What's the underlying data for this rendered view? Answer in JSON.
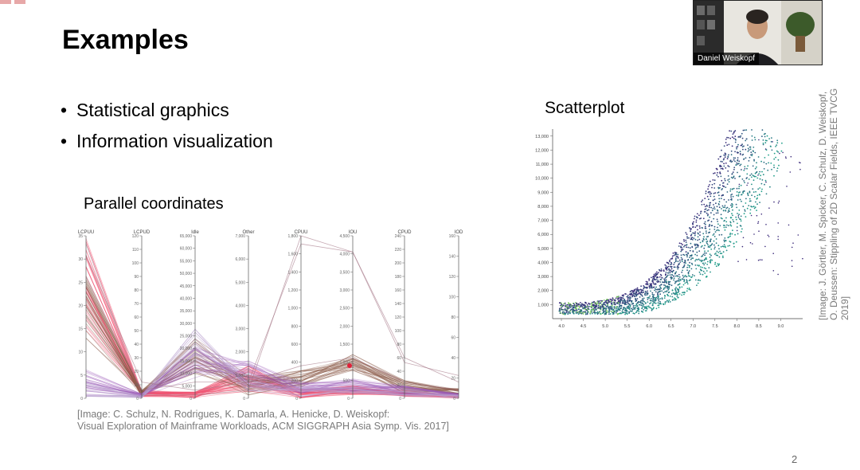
{
  "slide": {
    "title": "Examples",
    "bullets": [
      "Statistical graphics",
      "Information visualization"
    ],
    "page_number": "2"
  },
  "parallel_coords": {
    "label": "Parallel coordinates",
    "caption_lines": [
      "[Image: C. Schulz, N. Rodrigues, K. Damarla, A. Henicke, D. Weiskopf:",
      "Visual Exploration of Mainframe Workloads, ACM SIGGRAPH Asia Symp. Vis. 2017]"
    ],
    "axes": [
      {
        "name": "LCPUU",
        "ticks": [
          "35",
          "30",
          "25",
          "20",
          "15",
          "10",
          "5",
          "0"
        ]
      },
      {
        "name": "LCPUD",
        "ticks": [
          "120",
          "110",
          "100",
          "90",
          "80",
          "70",
          "60",
          "50",
          "40",
          "30",
          "20",
          "10",
          "0"
        ]
      },
      {
        "name": "Idle",
        "ticks": [
          "65,000",
          "60,000",
          "55,000",
          "50,000",
          "45,000",
          "40,000",
          "35,000",
          "30,000",
          "25,000",
          "20,000",
          "15,000",
          "10,000",
          "5,000",
          "0"
        ]
      },
      {
        "name": "Other",
        "ticks": [
          "7,000",
          "6,000",
          "5,000",
          "4,000",
          "3,000",
          "2,000",
          "1,000",
          "0"
        ]
      },
      {
        "name": "CPUU",
        "ticks": [
          "1,800",
          "1,600",
          "1,400",
          "1,200",
          "1,000",
          "800",
          "600",
          "400",
          "200",
          "0"
        ]
      },
      {
        "name": "IOU",
        "ticks": [
          "4,500",
          "4,000",
          "3,500",
          "3,000",
          "2,500",
          "2,000",
          "1,500",
          "1,000",
          "500",
          "0"
        ]
      },
      {
        "name": "CPUD",
        "ticks": [
          "240",
          "220",
          "200",
          "180",
          "160",
          "140",
          "120",
          "100",
          "80",
          "60",
          "40",
          "20",
          "0"
        ]
      },
      {
        "name": "IOD",
        "ticks": [
          "160",
          "140",
          "120",
          "100",
          "80",
          "60",
          "40",
          "20",
          "0"
        ]
      }
    ]
  },
  "scatterplot": {
    "label": "Scatterplot",
    "caption": "[Image: J. Görtler, M. Spicker, C. Schulz, D. Weiskopf, O. Deussen: Stippling of 2D Scalar Fields, IEEE TVCG 2019]",
    "y_ticks": [
      "13,000",
      "12,000",
      "11,000",
      "10,000",
      "9,000",
      "8,000",
      "7,000",
      "6,000",
      "5,000",
      "4,000",
      "3,000",
      "2,000",
      "1,000"
    ],
    "x_ticks": [
      "4.0",
      "4.5",
      "5.0",
      "5.5",
      "6.0",
      "6.5",
      "7.0",
      "7.5",
      "8.0",
      "8.5",
      "9.0"
    ]
  },
  "video": {
    "participant_name": "Daniel Weiskopf"
  },
  "colors": {
    "pc_red": "#f0506e",
    "pc_brown": "#8b5a4a",
    "pc_purple": "#9b59b6",
    "scatter_teal": "#21a08a",
    "scatter_purple": "#3b2a7a"
  },
  "chart_data": [
    {
      "type": "line",
      "title": "",
      "axes": [
        "LCPUU",
        "LCPUD",
        "Idle",
        "Other",
        "CPUU",
        "IOU",
        "CPUD",
        "IOD"
      ],
      "ranges": [
        [
          0,
          35
        ],
        [
          0,
          120
        ],
        [
          0,
          65000
        ],
        [
          0,
          7000
        ],
        [
          0,
          1800
        ],
        [
          0,
          4500
        ],
        [
          0,
          240
        ],
        [
          0,
          160
        ]
      ]
    },
    {
      "type": "scatter",
      "title": "",
      "xlim": [
        3.8,
        9.5
      ],
      "ylim": [
        0,
        13500
      ],
      "series": [
        {
          "x": [
            4.0,
            4.5,
            5.0,
            5.5,
            6.0,
            6.5,
            7.0,
            7.5,
            8.0,
            8.5,
            9.0
          ],
          "y": [
            600,
            900,
            1400,
            2200,
            3500,
            5500,
            8500,
            11500,
            13000,
            13000,
            13000
          ]
        }
      ]
    }
  ]
}
